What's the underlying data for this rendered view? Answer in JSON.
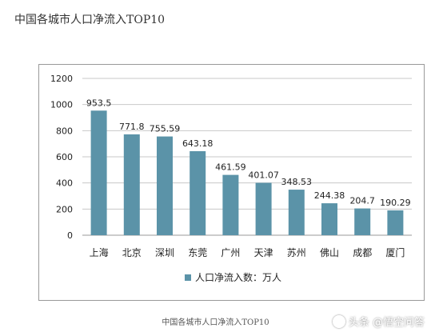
{
  "header": {
    "title": "中国各城市人口净流入TOP10"
  },
  "caption": "中国各城市人口净流入TOP10",
  "watermark": {
    "text": "头条 @悟空问答",
    "icon": "logo-icon"
  },
  "colors": {
    "bar": "#5b93a8",
    "grid": "#c8c8c8",
    "axis": "#999999",
    "text": "#222222"
  },
  "chart_data": {
    "type": "bar",
    "categories": [
      "上海",
      "北京",
      "深圳",
      "东莞",
      "广州",
      "天津",
      "苏州",
      "佛山",
      "成都",
      "厦门"
    ],
    "series": [
      {
        "name": "人口净流入数：万人",
        "values": [
          953.5,
          771.8,
          755.59,
          643.18,
          461.59,
          401.07,
          348.53,
          244.38,
          204.7,
          190.29
        ]
      }
    ],
    "value_labels": [
      "953.5",
      "771.8",
      "755.59",
      "643.18",
      "461.59",
      "401.07",
      "348.53",
      "244.38",
      "204.7",
      "190.29"
    ],
    "yticks": [
      0,
      200,
      400,
      600,
      800,
      1000,
      1200
    ],
    "ylim": [
      0,
      1200
    ],
    "grid": true,
    "legend": "bottom-center"
  }
}
